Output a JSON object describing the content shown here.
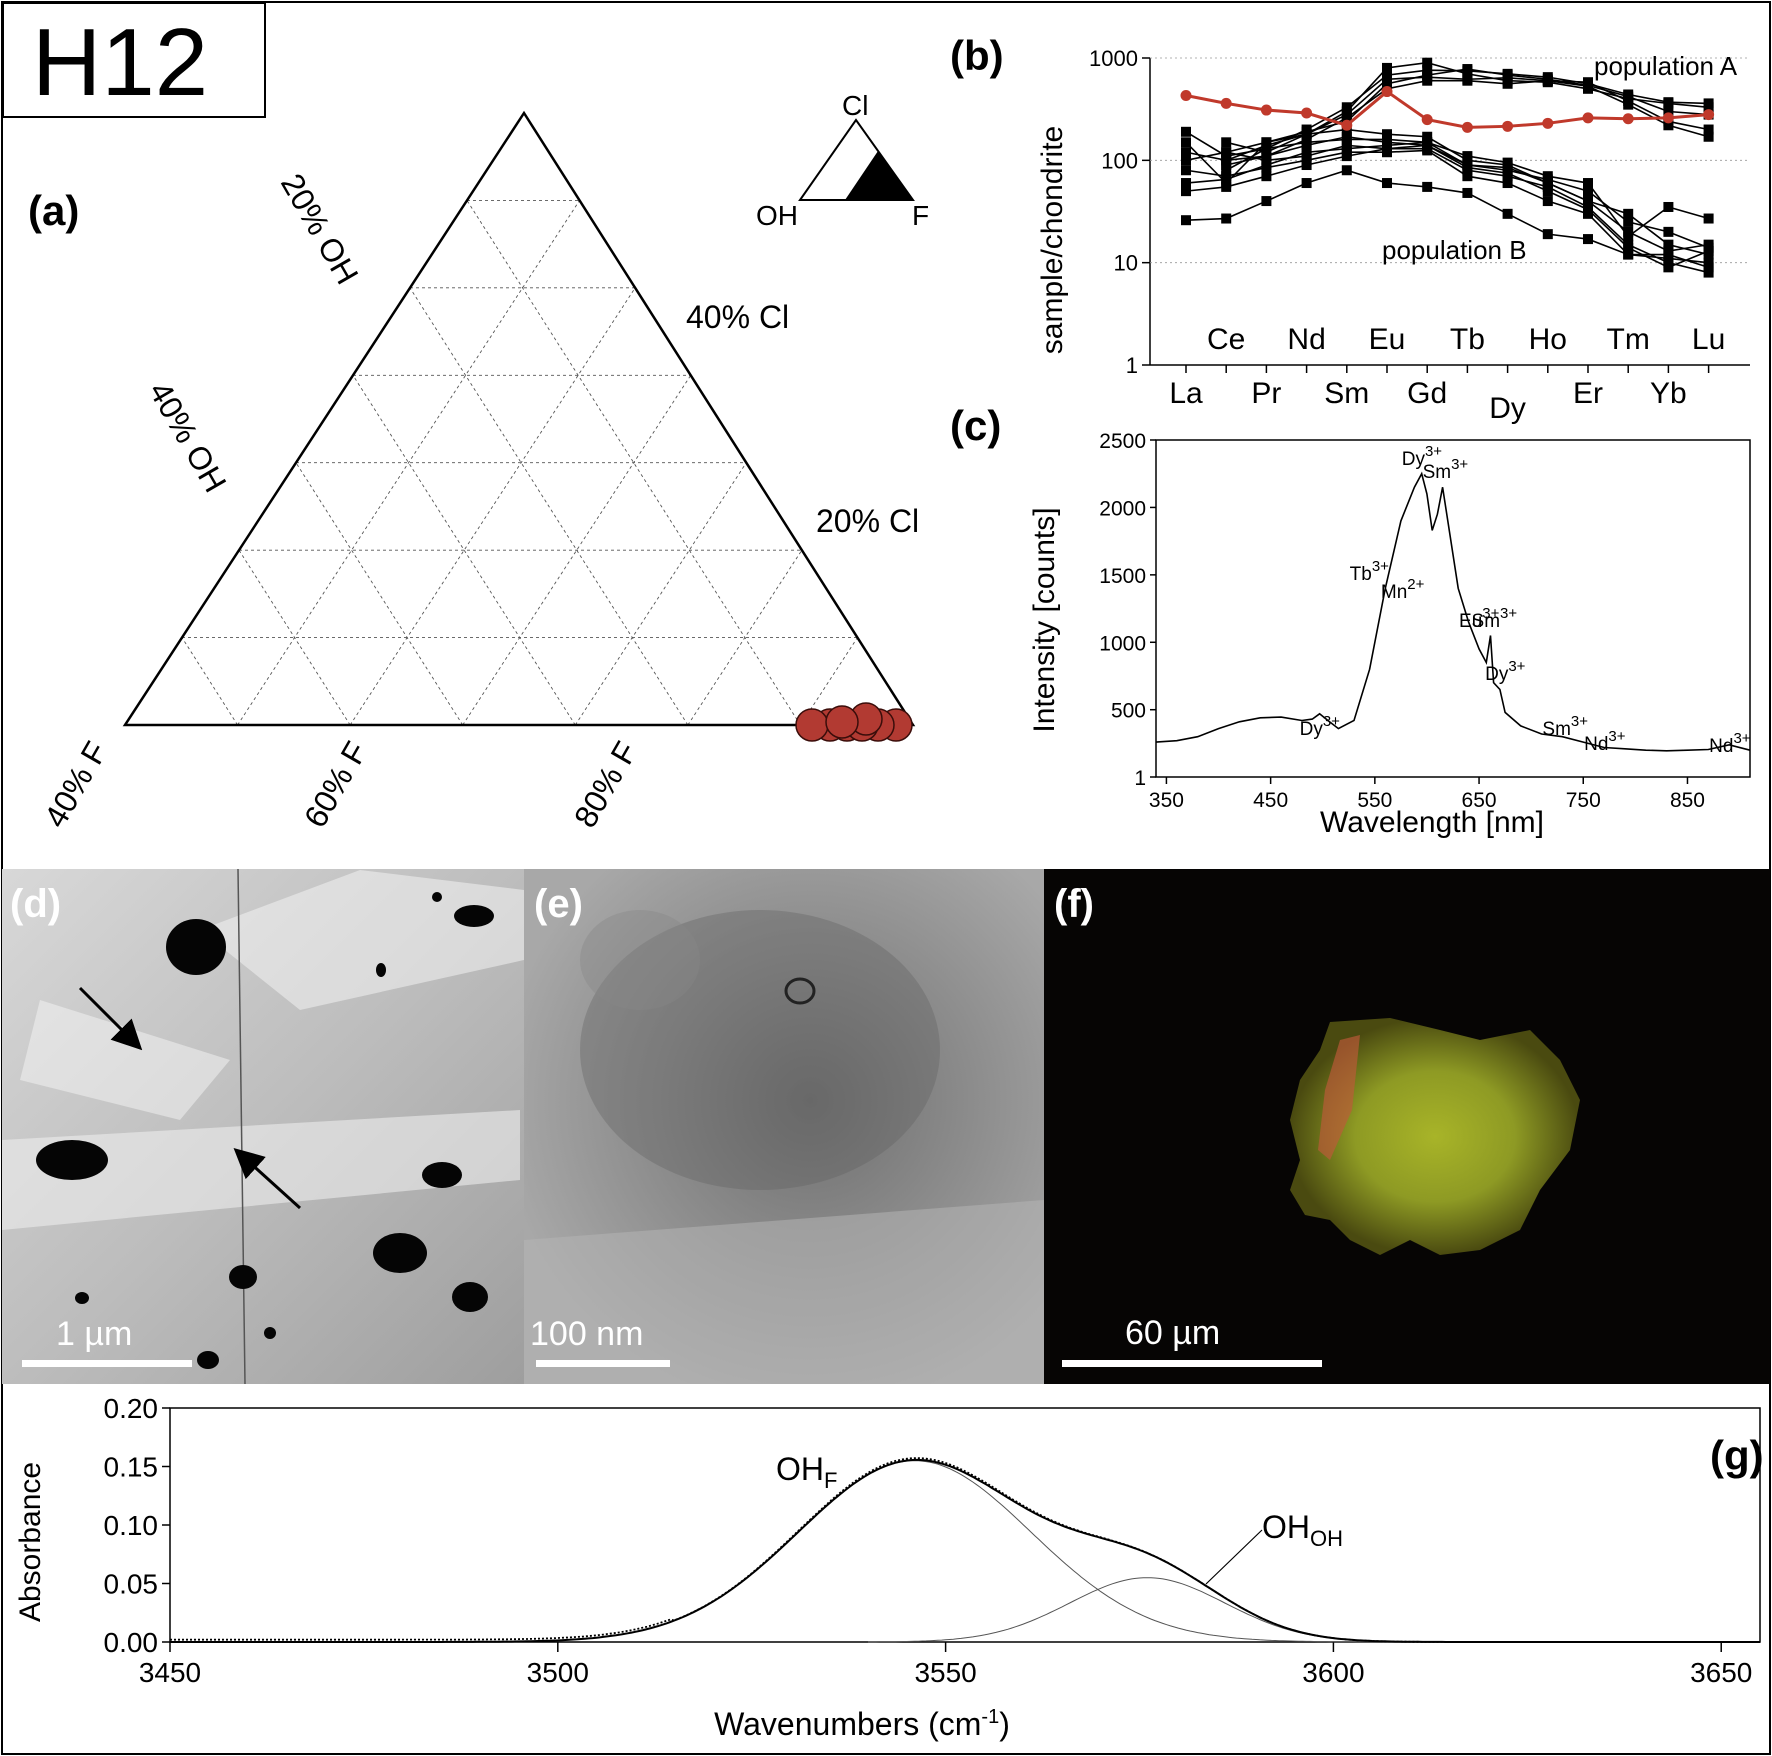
{
  "sample_label": "H12",
  "panel_labels": {
    "a": "(a)",
    "b": "(b)",
    "c": "(c)",
    "d": "(d)",
    "e": "(e)",
    "f": "(f)",
    "g": "(g)"
  },
  "ternary": {
    "inset_labels": {
      "top": "Cl",
      "left": "OH",
      "right": "F"
    },
    "axis_labels": {
      "oh20": "20% OH",
      "oh40": "40% OH",
      "cl40": "40% Cl",
      "cl20": "20% Cl",
      "f40": "40% F",
      "f60": "60% F",
      "f80": "80% F"
    },
    "points_color": "#b23a32"
  },
  "scale_bars": {
    "d": "1 µm",
    "e": "100 nm",
    "f": "60 µm"
  },
  "chart_data": [
    {
      "panel": "b",
      "type": "line",
      "scale": "log",
      "ylabel": "sample/chondrite",
      "ylim": [
        1,
        1000
      ],
      "yticks": [
        "1000",
        "100",
        "10",
        "1"
      ],
      "elements_upper": [
        "Ce",
        "Nd",
        "Eu",
        "Tb",
        "Ho",
        "Tm",
        "Lu"
      ],
      "elements_lower": [
        "La",
        "Pr",
        "Sm",
        "Gd",
        "Dy",
        "Er",
        "Yb"
      ],
      "categories": [
        "La",
        "Ce",
        "Pr",
        "Nd",
        "Sm",
        "Eu",
        "Gd",
        "Tb",
        "Dy",
        "Ho",
        "Er",
        "Tm",
        "Yb",
        "Lu"
      ],
      "annotations": {
        "population_a": "population A",
        "population_b": "population B"
      },
      "highlight_color": "#c0392b",
      "highlight": {
        "values": [
          430,
          360,
          310,
          290,
          220,
          470,
          250,
          210,
          215,
          230,
          260,
          255,
          260,
          280
        ]
      },
      "series_a": [
        [
          null,
          150,
          120,
          180,
          300,
          800,
          900,
          700,
          600,
          580,
          500,
          400,
          360,
          330
        ],
        [
          null,
          80,
          130,
          200,
          330,
          680,
          760,
          750,
          700,
          650,
          560,
          440,
          370,
          360
        ],
        [
          null,
          120,
          150,
          190,
          240,
          560,
          680,
          780,
          680,
          620,
          540,
          420,
          300,
          280
        ],
        [
          null,
          100,
          140,
          180,
          280,
          620,
          650,
          620,
          640,
          600,
          580,
          380,
          240,
          200
        ],
        [
          null,
          90,
          110,
          160,
          260,
          500,
          600,
          600,
          560,
          600,
          530,
          350,
          220,
          170
        ]
      ],
      "series_b": [
        [
          150,
          60,
          150,
          180,
          200,
          180,
          170,
          100,
          90,
          60,
          40,
          30,
          15,
          12
        ],
        [
          120,
          100,
          110,
          140,
          170,
          150,
          140,
          90,
          80,
          65,
          50,
          25,
          20,
          14
        ],
        [
          190,
          110,
          130,
          150,
          160,
          160,
          150,
          110,
          95,
          70,
          60,
          18,
          35,
          27
        ],
        [
          100,
          120,
          100,
          110,
          140,
          130,
          130,
          80,
          70,
          55,
          35,
          15,
          10,
          8
        ],
        [
          80,
          70,
          85,
          100,
          120,
          120,
          125,
          70,
          60,
          40,
          30,
          12,
          11,
          10
        ],
        [
          60,
          65,
          90,
          120,
          130,
          140,
          150,
          90,
          85,
          60,
          40,
          20,
          13,
          15
        ],
        [
          50,
          55,
          70,
          90,
          110,
          130,
          140,
          85,
          75,
          50,
          33,
          14,
          9,
          13
        ],
        [
          26,
          27,
          40,
          60,
          80,
          60,
          55,
          48,
          30,
          19,
          17,
          12,
          12,
          9
        ]
      ]
    },
    {
      "panel": "c",
      "type": "line",
      "xlabel": "Wavelength [nm]",
      "ylabel": "Intensity [counts]",
      "xlim": [
        340,
        910
      ],
      "ylim": [
        1,
        2500
      ],
      "xticks": [
        350,
        450,
        550,
        650,
        750,
        850
      ],
      "yticks": [
        1,
        500,
        1000,
        1500,
        2000,
        2500
      ],
      "series": [
        {
          "points": [
            [
              340,
              260
            ],
            [
              360,
              270
            ],
            [
              380,
              300
            ],
            [
              400,
              360
            ],
            [
              420,
              410
            ],
            [
              440,
              440
            ],
            [
              460,
              445
            ],
            [
              480,
              420
            ],
            [
              490,
              430
            ],
            [
              497,
              470
            ],
            [
              505,
              420
            ],
            [
              515,
              360
            ],
            [
              530,
              420
            ],
            [
              545,
              800
            ],
            [
              560,
              1400
            ],
            [
              575,
              1900
            ],
            [
              588,
              2150
            ],
            [
              595,
              2250
            ],
            [
              600,
              2100
            ],
            [
              605,
              1830
            ],
            [
              610,
              1950
            ],
            [
              615,
              2150
            ],
            [
              620,
              1900
            ],
            [
              630,
              1400
            ],
            [
              640,
              1150
            ],
            [
              650,
              950
            ],
            [
              657,
              850
            ],
            [
              661,
              1050
            ],
            [
              664,
              700
            ],
            [
              670,
              650
            ],
            [
              675,
              480
            ],
            [
              690,
              380
            ],
            [
              710,
              320
            ],
            [
              730,
              300
            ],
            [
              750,
              260
            ],
            [
              770,
              220
            ],
            [
              790,
              210
            ],
            [
              810,
              200
            ],
            [
              830,
              195
            ],
            [
              850,
              200
            ],
            [
              870,
              205
            ],
            [
              890,
              240
            ],
            [
              910,
              200
            ]
          ]
        }
      ],
      "peak_labels": [
        {
          "ion": "Dy",
          "charge": "3+",
          "x": 497
        },
        {
          "ion": "Tb",
          "charge": "3+",
          "x": 545
        },
        {
          "ion": "Mn",
          "charge": "2+",
          "x": 575
        },
        {
          "ion": "Dy",
          "charge": "3+",
          "x": 595
        },
        {
          "ion": "Sm",
          "charge": "3+",
          "x": 615
        },
        {
          "ion": "Eu",
          "charge": "3+",
          "x": 650
        },
        {
          "ion": "Sm",
          "charge": "3+",
          "x": 662
        },
        {
          "ion": "Dy",
          "charge": "3+",
          "x": 675
        },
        {
          "ion": "Sm",
          "charge": "3+",
          "x": 730
        },
        {
          "ion": "Nd",
          "charge": "3+",
          "x": 770
        },
        {
          "ion": "Nd",
          "charge": "3+",
          "x": 890
        }
      ]
    },
    {
      "panel": "g",
      "type": "line",
      "xlabel_main": "Wavenumbers (cm",
      "xlabel_sup": "-1",
      "xlabel_end": ")",
      "ylabel": "Absorbance",
      "xlim": [
        3450,
        3655
      ],
      "ylim": [
        0,
        0.2
      ],
      "xticks": [
        3450,
        3500,
        3550,
        3600,
        3650
      ],
      "yticks": [
        "0.00",
        "0.05",
        "0.10",
        "0.15",
        "0.20"
      ],
      "components": [
        {
          "label_main": "OH",
          "label_sub": "F",
          "center": 3546,
          "height": 0.155,
          "sigma": 15
        },
        {
          "label_main": "OH",
          "label_sub": "OH",
          "center": 3576,
          "height": 0.055,
          "sigma": 10
        }
      ]
    }
  ]
}
